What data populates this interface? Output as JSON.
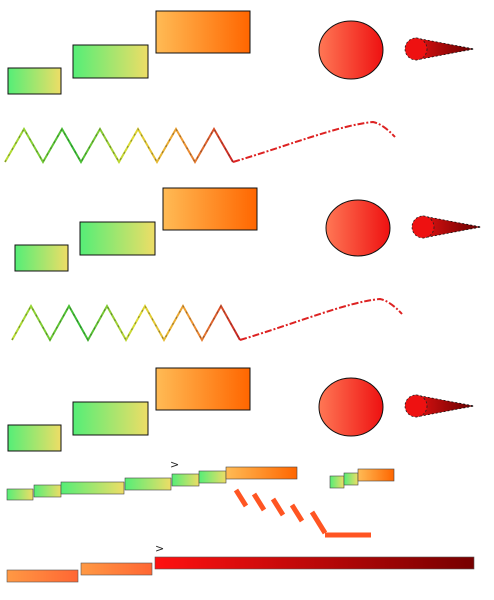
{
  "markers": {
    "row_a": ">",
    "row_b": ">"
  },
  "palette": {
    "green": "#55ee77",
    "yellow": "#eedd66",
    "orange_light": "#ffbb55",
    "orange": "#ff6600",
    "red": "#ee3322",
    "dark_red": "#880000",
    "dash_orange": "#ff5522",
    "outline": "#111111"
  }
}
